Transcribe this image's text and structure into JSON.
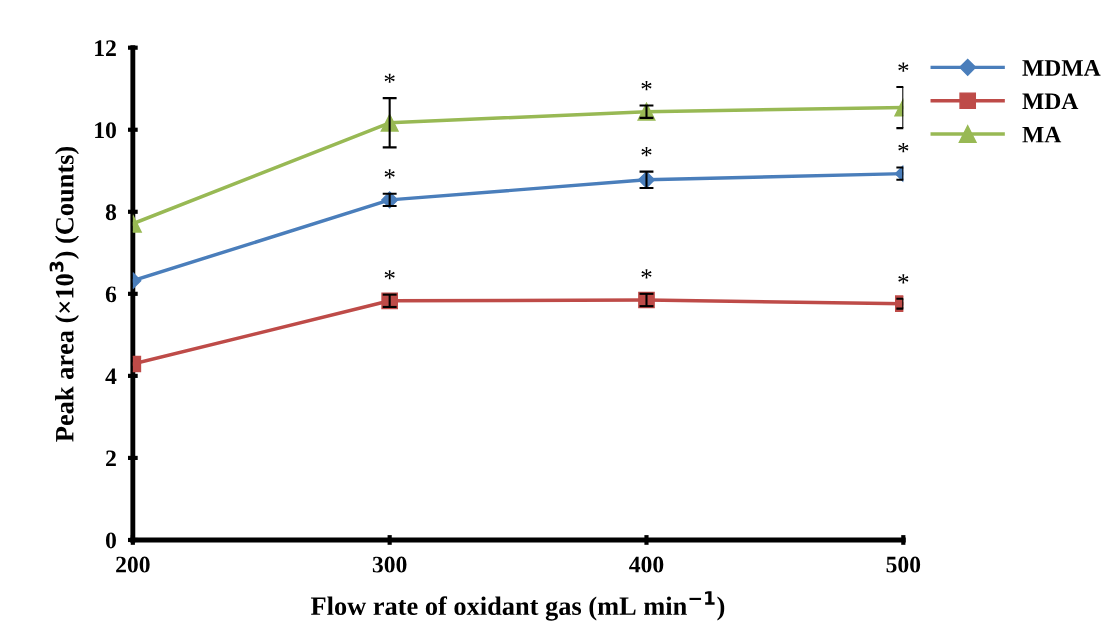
{
  "chart_data": {
    "type": "line",
    "xlabel": "Flow rate of oxidant gas (mL min$^{−1}$)",
    "ylabel": "Peak area (×10$^{3}$) (Counts)",
    "x": [
      200,
      300,
      400,
      500
    ],
    "xlim": [
      200,
      500
    ],
    "xticks": [
      200,
      300,
      400,
      500
    ],
    "ylim": [
      0,
      12
    ],
    "yticks": [
      0,
      2,
      4,
      6,
      8,
      10,
      12
    ],
    "grid": false,
    "legend": "top right",
    "series": [
      {
        "name": "MDMA",
        "color": "#4a7ebb",
        "marker": "diamond",
        "values": [
          6.32,
          8.29,
          8.78,
          8.93
        ],
        "errors": [
          null,
          0.15,
          0.2,
          0.15
        ]
      },
      {
        "name": "MDA",
        "color": "#be4b48",
        "marker": "square",
        "values": [
          4.29,
          5.83,
          5.85,
          5.76
        ],
        "errors": [
          null,
          0.15,
          0.15,
          0.12
        ]
      },
      {
        "name": "MA",
        "color": "#98b954",
        "marker": "triangle",
        "values": [
          7.71,
          10.17,
          10.44,
          10.54
        ],
        "errors": [
          null,
          0.6,
          0.15,
          0.5
        ]
      }
    ],
    "annotations": [
      {
        "text": "*",
        "x": 300,
        "y": 8.29
      },
      {
        "text": "*",
        "x": 400,
        "y": 8.78
      },
      {
        "text": "*",
        "x": 500,
        "y": 8.93
      },
      {
        "text": "*",
        "x": 300,
        "y": 5.83
      },
      {
        "text": "*",
        "x": 400,
        "y": 5.85
      },
      {
        "text": "*",
        "x": 500,
        "y": 5.76
      },
      {
        "text": "*",
        "x": 300,
        "y": 10.17
      },
      {
        "text": "*",
        "x": 400,
        "y": 10.44
      },
      {
        "text": "*",
        "x": 500,
        "y": 10.54
      }
    ]
  }
}
